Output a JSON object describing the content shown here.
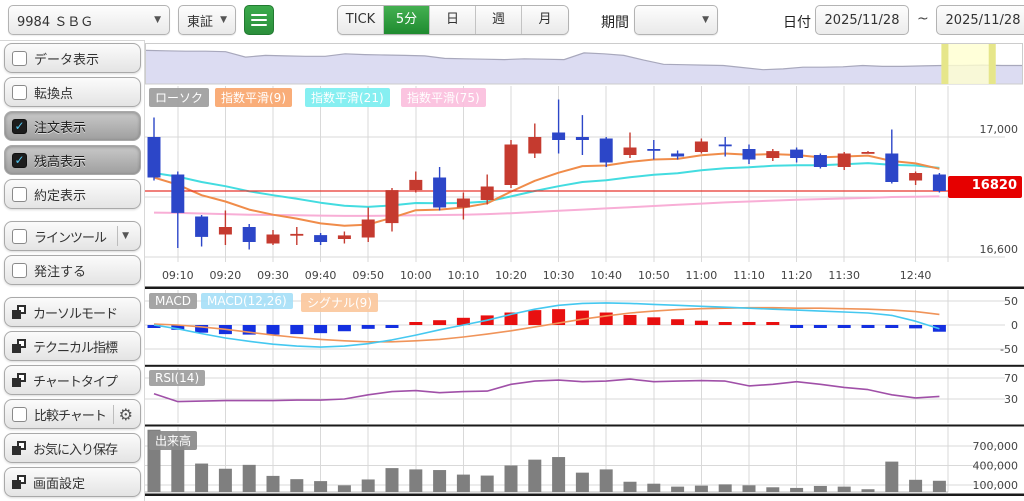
{
  "toolbar": {
    "symbol": "9984 ＳＢＧ",
    "market": "東証",
    "timeframes": [
      "TICK",
      "5分",
      "日",
      "週",
      "月"
    ],
    "timeframe_selected": "5分",
    "period_label": "期間",
    "date_label": "日付",
    "date_from": "2025/11/28",
    "date_separator": "~",
    "date_to": "2025/11/28"
  },
  "icons": {
    "dropdown": "▼",
    "check": "✓",
    "gear": "⚙"
  },
  "sidebar": {
    "toggles": [
      {
        "label": "データ表示",
        "checked": false
      },
      {
        "label": "転換点",
        "checked": false
      },
      {
        "label": "注文表示",
        "checked": true
      },
      {
        "label": "残高表示",
        "checked": true
      },
      {
        "label": "約定表示",
        "checked": false
      }
    ],
    "line_tool": {
      "label": "ラインツール",
      "checked": false
    },
    "order_toggle": {
      "label": "発注する",
      "checked": false
    },
    "buttons": [
      {
        "label": "カーソルモード"
      },
      {
        "label": "テクニカル指標"
      },
      {
        "label": "チャートタイプ"
      },
      {
        "label": "比較チャート"
      },
      {
        "label": "お気に入り保存"
      },
      {
        "label": "画面設定"
      }
    ]
  },
  "colors": {
    "accent_green": "#2f9e44",
    "candle_up": "#c53a2f",
    "candle_down": "#2c46c8",
    "ema9": "#f08c4a",
    "ema21": "#43dce0",
    "ema75": "#f8aed6",
    "last_price_bg": "#e60000",
    "last_price_line": "#e8342c",
    "macd_line": "#45c8f0",
    "signal_line": "#f0945a",
    "hist_up": "#e81010",
    "hist_down": "#1430e0",
    "rsi_line": "#a050a8",
    "volume_bar": "#7f7f7f",
    "nav_fill": "#dcdcf2",
    "nav_line": "#a8a8bc",
    "nav_selection": "#ffffcf",
    "nav_selection_border": "#e6e68a",
    "grid": "#d9d9d9",
    "axis_text": "#444",
    "separator": "#1a1a1a",
    "chip_gray": "#9e9e9e",
    "chip_ema9": "#f9a76e",
    "chip_ema21": "#7ceef0",
    "chip_ema75": "#fbc0de",
    "chip_macd_line": "#a8e0f8",
    "chip_signal": "#fbc89e",
    "chip_vol": "#8a8a8a"
  },
  "chart_data": [
    {
      "type": "candlestick",
      "panel": "price",
      "legend": [
        "ローソク",
        "指数平滑(9)",
        "指数平滑(21)",
        "指数平滑(75)"
      ],
      "times": [
        "09:05",
        "09:10",
        "09:15",
        "09:20",
        "09:25",
        "09:30",
        "09:35",
        "09:40",
        "09:45",
        "09:50",
        "09:55",
        "10:00",
        "10:05",
        "10:10",
        "10:15",
        "10:20",
        "10:25",
        "10:30",
        "10:35",
        "10:40",
        "10:45",
        "10:50",
        "10:55",
        "11:00",
        "11:05",
        "11:10",
        "11:15",
        "11:20",
        "11:25",
        "11:30",
        "12:30",
        "12:35",
        "12:40",
        "12:45"
      ],
      "open": [
        17000,
        16875,
        16735,
        16675,
        16700,
        16645,
        16675,
        16673,
        16660,
        16665,
        16713,
        16823,
        16865,
        16765,
        16790,
        16840,
        16945,
        17015,
        17000,
        16995,
        16940,
        16960,
        16945,
        16950,
        16975,
        16960,
        16930,
        16958,
        16940,
        16900,
        16950,
        16945,
        16855,
        16875
      ],
      "high": [
        17065,
        16885,
        16740,
        16755,
        16710,
        16690,
        16700,
        16680,
        16685,
        16765,
        16830,
        16885,
        16900,
        16815,
        16875,
        16990,
        17045,
        17125,
        17073,
        17000,
        17015,
        16990,
        16955,
        16995,
        17000,
        16975,
        16960,
        16965,
        16945,
        16950,
        16953,
        17025,
        16885,
        16880
      ],
      "low": [
        16855,
        16630,
        16635,
        16640,
        16625,
        16640,
        16640,
        16640,
        16645,
        16650,
        16685,
        16815,
        16755,
        16725,
        16775,
        16830,
        16930,
        16945,
        16940,
        16900,
        16930,
        16925,
        16925,
        16945,
        16935,
        16910,
        16920,
        16915,
        16895,
        16890,
        16947,
        16845,
        16840,
        16815
      ],
      "close": [
        16865,
        16747,
        16667,
        16700,
        16650,
        16675,
        16677,
        16650,
        16672,
        16725,
        16823,
        16857,
        16765,
        16795,
        16835,
        16975,
        17000,
        16990,
        16990,
        16915,
        16965,
        16955,
        16935,
        16985,
        16970,
        16925,
        16953,
        16930,
        16900,
        16945,
        16950,
        16850,
        16880,
        16820
      ],
      "ema9": [
        16865,
        16841,
        16806,
        16785,
        16758,
        16741,
        16728,
        16712,
        16704,
        16708,
        16731,
        16756,
        16758,
        16765,
        16779,
        16818,
        16854,
        16881,
        16903,
        16905,
        16917,
        16925,
        16927,
        16939,
        16945,
        16941,
        16943,
        16940,
        16932,
        16935,
        16938,
        16920,
        16912,
        16894
      ],
      "ema21": [
        16880,
        16868,
        16850,
        16836,
        16819,
        16806,
        16794,
        16781,
        16771,
        16767,
        16772,
        16780,
        16779,
        16780,
        16785,
        16802,
        16820,
        16836,
        16850,
        16856,
        16866,
        16874,
        16879,
        16889,
        16896,
        16899,
        16904,
        16906,
        16906,
        16909,
        16913,
        16907,
        16905,
        16897
      ],
      "ema75": [
        16748,
        16747,
        16745,
        16743,
        16741,
        16740,
        16739,
        16738,
        16737,
        16737,
        16738,
        16739,
        16740,
        16741,
        16743,
        16746,
        16750,
        16754,
        16758,
        16762,
        16766,
        16770,
        16774,
        16778,
        16782,
        16785,
        16788,
        16791,
        16793,
        16795,
        16797,
        16800,
        16801,
        16802
      ],
      "last_price": 16820,
      "last_price_label": "16820",
      "y_ticks": [
        [
          17000,
          "17,000"
        ],
        [
          16800,
          "16,800"
        ],
        [
          16600,
          "16,600"
        ]
      ],
      "ylim": [
        16583,
        17177
      ],
      "x_ticks": [
        [
          1,
          "09:10"
        ],
        [
          3,
          "09:20"
        ],
        [
          5,
          "09:30"
        ],
        [
          7,
          "09:40"
        ],
        [
          9,
          "09:50"
        ],
        [
          11,
          "10:00"
        ],
        [
          13,
          "10:10"
        ],
        [
          15,
          "10:20"
        ],
        [
          17,
          "10:30"
        ],
        [
          19,
          "10:40"
        ],
        [
          21,
          "10:50"
        ],
        [
          23,
          "11:00"
        ],
        [
          25,
          "11:10"
        ],
        [
          27,
          "11:20"
        ],
        [
          29,
          "11:30"
        ],
        [
          32,
          "12:40"
        ]
      ]
    },
    {
      "type": "bar+line",
      "panel": "macd",
      "legend": [
        "MACD",
        "MACD(12,26)",
        "シグナル(9)"
      ],
      "histogram": [
        -3,
        -10,
        -16,
        -19,
        -20,
        -20,
        -19,
        -17,
        -13,
        -8,
        -3,
        5,
        10,
        15,
        20,
        26,
        31,
        33,
        30,
        26,
        21,
        16,
        12,
        9,
        6,
        3,
        2,
        -2,
        -3,
        -4,
        -4,
        -5,
        -7,
        -14
      ],
      "macd": [
        0,
        -8,
        -18,
        -27,
        -34,
        -40,
        -44,
        -46,
        -44,
        -39,
        -31,
        -21,
        -10,
        0,
        10,
        22,
        33,
        41,
        45,
        46,
        45,
        43,
        41,
        39,
        37,
        35,
        33,
        31,
        29,
        27,
        25,
        20,
        8,
        -8
      ],
      "signal": [
        2,
        0,
        -4,
        -9,
        -15,
        -21,
        -26,
        -30,
        -33,
        -35,
        -35,
        -33,
        -30,
        -25,
        -19,
        -12,
        -4,
        4,
        12,
        19,
        25,
        29,
        32,
        34,
        35,
        36,
        36,
        35,
        35,
        34,
        33,
        31,
        28,
        22
      ],
      "y_ticks": [
        [
          50,
          "50"
        ],
        [
          0,
          "0"
        ],
        [
          -50,
          "-50"
        ]
      ],
      "ylim": [
        -77,
        77
      ]
    },
    {
      "type": "line",
      "panel": "rsi",
      "legend": [
        "RSI(14)"
      ],
      "rsi": [
        40,
        25,
        26,
        27,
        27,
        27,
        28,
        28,
        30,
        38,
        44,
        46,
        42,
        44,
        45,
        58,
        64,
        66,
        63,
        64,
        68,
        63,
        64,
        65,
        64,
        55,
        58,
        63,
        58,
        52,
        48,
        38,
        32,
        35
      ],
      "y_ticks": [
        [
          70,
          "70"
        ],
        [
          30,
          "30"
        ]
      ],
      "ylim": [
        0,
        100
      ]
    },
    {
      "type": "bar",
      "panel": "volume",
      "legend": [
        "出来高"
      ],
      "volume": [
        950000,
        760000,
        430000,
        350000,
        410000,
        240000,
        190000,
        160000,
        95000,
        185000,
        360000,
        340000,
        330000,
        260000,
        245000,
        400000,
        490000,
        530000,
        290000,
        340000,
        150000,
        120000,
        75000,
        90000,
        110000,
        95000,
        65000,
        55000,
        85000,
        75000,
        35000,
        460000,
        180000,
        165000
      ],
      "y_ticks": [
        [
          700000,
          "700,000"
        ],
        [
          400000,
          "400,000"
        ],
        [
          100000,
          "100,000"
        ]
      ],
      "ylim": [
        0,
        1000000
      ]
    },
    {
      "type": "area",
      "panel": "navigator",
      "values": [
        0.8,
        0.79,
        0.78,
        0.78,
        0.77,
        0.64,
        0.68,
        0.67,
        0.66,
        0.66,
        0.72,
        0.7,
        0.69,
        0.68,
        0.67,
        0.61,
        0.6,
        0.59,
        0.58,
        0.6,
        0.59,
        0.58,
        0.74,
        0.72,
        0.68,
        0.57,
        0.47,
        0.46,
        0.45,
        0.44,
        0.39,
        0.34,
        0.36,
        0.4,
        0.4,
        0.41,
        0.44,
        0.42,
        0.42,
        0.43,
        0.44,
        0.44,
        0.45,
        0.44,
        0.44
      ],
      "selection": [
        0.908,
        0.97
      ]
    }
  ]
}
